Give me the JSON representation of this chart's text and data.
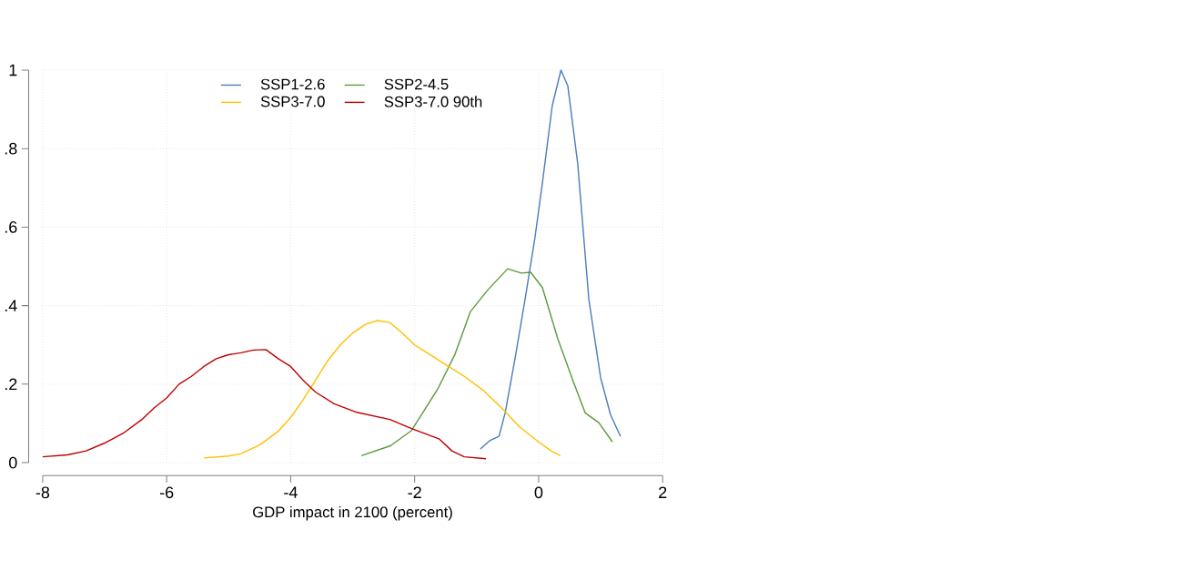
{
  "chart_data": {
    "type": "line",
    "xlabel": "GDP impact in 2100 (percent)",
    "xlim": [
      -8,
      2
    ],
    "xticks": [
      -8,
      -6,
      -4,
      -2,
      0,
      2
    ],
    "ylim": [
      0,
      1
    ],
    "yticks": [
      0,
      {
        "value": 0.2,
        "label": ".2"
      },
      {
        "value": 0.4,
        "label": ".4"
      },
      {
        "value": 0.6,
        "label": ".6"
      },
      {
        "value": 0.8,
        "label": ".8"
      },
      1
    ],
    "grid": true,
    "legend": "top",
    "marker": "none",
    "line_style": "solid",
    "series": [
      {
        "name": "SSP1-2.6",
        "color": "#4a7ebb",
        "x": [
          -0.94,
          -0.79,
          -0.64,
          -0.54,
          -0.38,
          -0.22,
          -0.06,
          0.06,
          0.22,
          0.36,
          0.47,
          0.63,
          0.81,
          1.0,
          1.16,
          1.32
        ],
        "values": [
          0.035,
          0.056,
          0.067,
          0.127,
          0.266,
          0.415,
          0.573,
          0.712,
          0.91,
          1.0,
          0.96,
          0.762,
          0.415,
          0.216,
          0.122,
          0.067
        ]
      },
      {
        "name": "SSP2-4.5",
        "color": "#5b9a3a",
        "x": [
          -2.86,
          -2.39,
          -2.05,
          -1.63,
          -1.35,
          -1.1,
          -0.82,
          -0.5,
          -0.28,
          -0.13,
          0.06,
          0.31,
          0.56,
          0.75,
          0.97,
          1.19
        ],
        "values": [
          0.018,
          0.043,
          0.082,
          0.187,
          0.276,
          0.385,
          0.44,
          0.494,
          0.483,
          0.485,
          0.446,
          0.315,
          0.206,
          0.127,
          0.102,
          0.053
        ]
      },
      {
        "name": "SSP3-7.0",
        "color": "#ffc000",
        "x": [
          -5.4,
          -5,
          -4.8,
          -4.5,
          -4.2,
          -4,
          -3.8,
          -3.6,
          -3.4,
          -3.2,
          -3,
          -2.8,
          -2.6,
          -2.4,
          -2.2,
          -2,
          -1.8,
          -1.5,
          -1.2,
          -0.9,
          -0.6,
          -0.3,
          0,
          0.2,
          0.35
        ],
        "values": [
          0.012,
          0.017,
          0.023,
          0.045,
          0.08,
          0.115,
          0.16,
          0.21,
          0.26,
          0.3,
          0.33,
          0.352,
          0.362,
          0.357,
          0.33,
          0.3,
          0.28,
          0.25,
          0.22,
          0.185,
          0.14,
          0.09,
          0.053,
          0.03,
          0.018
        ]
      },
      {
        "name": "SSP3-7.0 90th",
        "color": "#c00000",
        "x": [
          -8,
          -7.6,
          -7.3,
          -7,
          -6.7,
          -6.4,
          -6.2,
          -6,
          -5.8,
          -5.6,
          -5.4,
          -5.2,
          -5,
          -4.8,
          -4.6,
          -4.4,
          -4.2,
          -4,
          -3.8,
          -3.6,
          -3.3,
          -2.95,
          -2.4,
          -2.05,
          -1.6,
          -1.4,
          -1.2,
          -0.85
        ],
        "values": [
          0.015,
          0.02,
          0.03,
          0.05,
          0.075,
          0.11,
          0.14,
          0.165,
          0.2,
          0.22,
          0.245,
          0.265,
          0.275,
          0.28,
          0.287,
          0.288,
          0.265,
          0.245,
          0.21,
          0.18,
          0.15,
          0.129,
          0.11,
          0.087,
          0.06,
          0.03,
          0.015,
          0.01
        ]
      }
    ]
  }
}
